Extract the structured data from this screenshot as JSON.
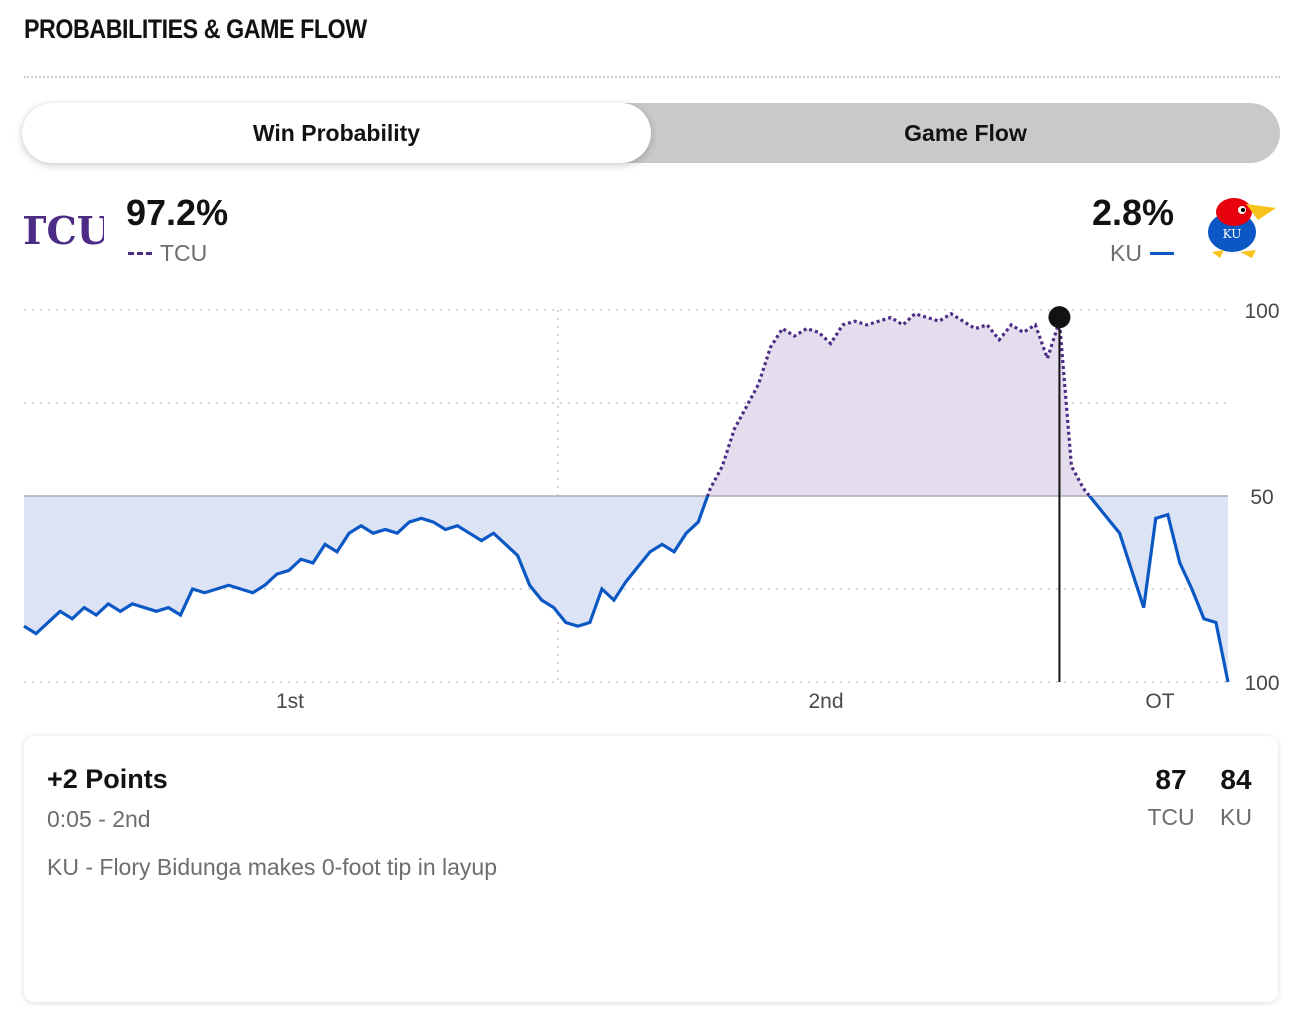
{
  "header": {
    "title": "PROBABILITIES & GAME FLOW"
  },
  "tabs": [
    {
      "label": "Win Probability",
      "active": true
    },
    {
      "label": "Game Flow",
      "active": false
    }
  ],
  "teams": {
    "home": {
      "abbr": "TCU",
      "win_pct": "97.2%",
      "color": "#4d2c85",
      "logo_text": "TCU"
    },
    "away": {
      "abbr": "KU",
      "win_pct": "2.8%",
      "color": "#0b58c4",
      "logo_text": "KU"
    }
  },
  "colors": {
    "tcu_fill": "#e4dded",
    "ku_fill": "#dbe3f5",
    "grid": "#c9cacc",
    "midline": "#a7a9b8"
  },
  "chart_data": {
    "type": "area",
    "title": "",
    "xlabel": "",
    "ylabel": "",
    "ylim": [
      0,
      100
    ],
    "y_tick_labels": [
      "100",
      "50",
      "100"
    ],
    "x_tick_labels": [
      "1st",
      "2nd",
      "OT"
    ],
    "series": [
      {
        "name": "TCU",
        "note_upper_half_only": true,
        "points_game_progress_pct_vs_tcu_win_pct": [
          [
            0,
            15
          ],
          [
            1,
            13
          ],
          [
            2,
            16
          ],
          [
            3,
            19
          ],
          [
            4,
            17
          ],
          [
            5,
            20
          ],
          [
            6,
            18
          ],
          [
            7,
            21
          ],
          [
            8,
            19
          ],
          [
            9,
            21
          ],
          [
            10,
            20
          ],
          [
            11,
            19
          ],
          [
            12,
            20
          ],
          [
            13,
            18
          ],
          [
            14,
            25
          ],
          [
            15,
            24
          ],
          [
            16,
            25
          ],
          [
            17,
            26
          ],
          [
            18,
            25
          ],
          [
            19,
            24
          ],
          [
            20,
            26
          ],
          [
            21,
            29
          ],
          [
            22,
            30
          ],
          [
            23,
            33
          ],
          [
            24,
            32
          ],
          [
            25,
            37
          ],
          [
            26,
            35
          ],
          [
            27,
            40
          ],
          [
            28,
            42
          ],
          [
            29,
            40
          ],
          [
            30,
            41
          ],
          [
            31,
            40
          ],
          [
            32,
            43
          ],
          [
            33,
            44
          ],
          [
            34,
            43
          ],
          [
            35,
            41
          ],
          [
            36,
            42
          ],
          [
            37,
            40
          ],
          [
            38,
            38
          ],
          [
            39,
            40
          ],
          [
            40,
            37
          ],
          [
            41,
            34
          ],
          [
            42,
            26
          ],
          [
            43,
            22
          ],
          [
            44,
            20
          ],
          [
            45,
            16
          ],
          [
            46,
            15
          ],
          [
            47,
            16
          ],
          [
            48,
            25
          ],
          [
            49,
            22
          ],
          [
            50,
            27
          ],
          [
            51,
            31
          ],
          [
            52,
            35
          ],
          [
            53,
            37
          ],
          [
            54,
            35
          ],
          [
            55,
            40
          ],
          [
            56,
            43
          ],
          [
            57,
            52
          ],
          [
            58,
            58
          ],
          [
            59,
            68
          ],
          [
            60,
            74
          ],
          [
            61,
            80
          ],
          [
            62,
            90
          ],
          [
            63,
            95
          ],
          [
            64,
            93
          ],
          [
            65,
            95
          ],
          [
            66,
            94
          ],
          [
            67,
            91
          ],
          [
            68,
            96
          ],
          [
            69,
            97
          ],
          [
            70,
            96
          ],
          [
            71,
            97
          ],
          [
            72,
            98
          ],
          [
            73,
            96
          ],
          [
            74,
            99
          ],
          [
            75,
            98
          ],
          [
            76,
            97
          ],
          [
            77,
            99
          ],
          [
            78,
            97
          ],
          [
            79,
            95
          ],
          [
            80,
            96
          ],
          [
            81,
            92
          ],
          [
            82,
            96
          ],
          [
            83,
            94
          ],
          [
            84,
            96
          ],
          [
            85,
            87
          ],
          [
            86,
            97
          ],
          [
            87,
            58
          ],
          [
            88,
            52
          ],
          [
            89,
            48
          ],
          [
            90,
            44
          ],
          [
            91,
            40
          ],
          [
            92,
            30
          ],
          [
            93,
            20
          ],
          [
            94,
            44
          ],
          [
            95,
            45
          ],
          [
            96,
            32
          ],
          [
            97,
            25
          ],
          [
            98,
            17
          ],
          [
            99,
            16
          ],
          [
            100,
            0
          ]
        ]
      },
      {
        "name": "KU"
      }
    ]
  },
  "play": {
    "headline": "+2 Points",
    "time": "0:05 - 2nd",
    "description": "KU - Flory Bidunga makes 0-foot tip in layup",
    "score_tcu": "87",
    "score_ku": "84",
    "abbr_tcu": "TCU",
    "abbr_ku": "KU"
  }
}
